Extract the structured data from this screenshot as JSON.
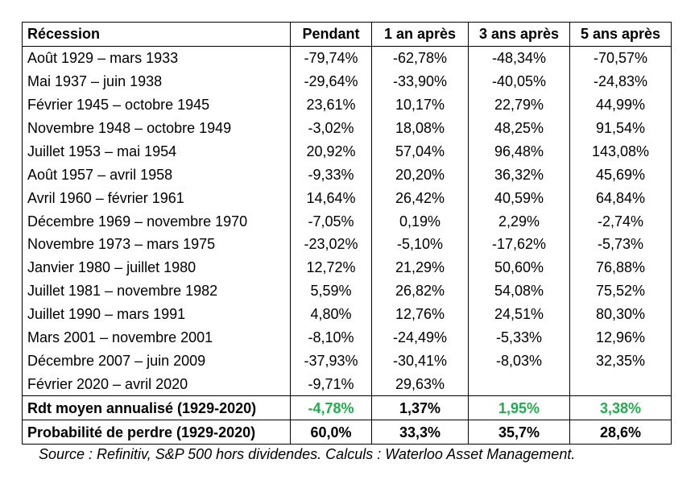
{
  "headers": [
    "Récession",
    "Pendant",
    "1 an après",
    "3 ans après",
    "5 ans après"
  ],
  "rows": [
    {
      "period": "Août 1929 – mars 1933",
      "pendant": "-79,74%",
      "y1": "-62,78%",
      "y3": "-48,34%",
      "y5": "-70,57%"
    },
    {
      "period": "Mai 1937 – juin 1938",
      "pendant": "-29,64%",
      "y1": "-33,90%",
      "y3": "-40,05%",
      "y5": "-24,83%"
    },
    {
      "period": "Février 1945 – octobre 1945",
      "pendant": "23,61%",
      "y1": "10,17%",
      "y3": "22,79%",
      "y5": "44,99%"
    },
    {
      "period": "Novembre 1948 – octobre 1949",
      "pendant": "-3,02%",
      "y1": "18,08%",
      "y3": "48,25%",
      "y5": "91,54%"
    },
    {
      "period": "Juillet 1953 – mai 1954",
      "pendant": "20,92%",
      "y1": "57,04%",
      "y3": "96,48%",
      "y5": "143,08%"
    },
    {
      "period": "Août 1957 – avril 1958",
      "pendant": "-9,33%",
      "y1": "20,20%",
      "y3": "36,32%",
      "y5": "45,69%"
    },
    {
      "period": "Avril 1960 – février 1961",
      "pendant": "14,64%",
      "y1": "26,42%",
      "y3": "40,59%",
      "y5": "64,84%"
    },
    {
      "period": "Décembre 1969 – novembre 1970",
      "pendant": "-7,05%",
      "y1": "0,19%",
      "y3": "2,29%",
      "y5": "-2,74%"
    },
    {
      "period": "Novembre 1973 – mars 1975",
      "pendant": "-23,02%",
      "y1": "-5,10%",
      "y3": "-17,62%",
      "y5": "-5,73%"
    },
    {
      "period": "Janvier 1980 – juillet 1980",
      "pendant": "12,72%",
      "y1": "21,29%",
      "y3": "50,60%",
      "y5": "76,88%"
    },
    {
      "period": "Juillet 1981 – novembre 1982",
      "pendant": "5,59%",
      "y1": "26,82%",
      "y3": "54,08%",
      "y5": "75,52%"
    },
    {
      "period": "Juillet 1990 – mars 1991",
      "pendant": "4,80%",
      "y1": "12,76%",
      "y3": "24,51%",
      "y5": "80,30%"
    },
    {
      "period": "Mars 2001 – novembre 2001",
      "pendant": "-8,10%",
      "y1": "-24,49%",
      "y3": "-5,33%",
      "y5": "12,96%"
    },
    {
      "period": "Décembre 2007 – juin 2009",
      "pendant": "-37,93%",
      "y1": "-30,41%",
      "y3": "-8,03%",
      "y5": "32,35%"
    },
    {
      "period": "Février 2020 – avril 2020",
      "pendant": "-9,71%",
      "y1": "29,63%",
      "y3": "",
      "y5": ""
    }
  ],
  "summary": [
    {
      "label": "Rdt moyen annualisé (1929-2020)",
      "pendant": "-4,78%",
      "y1": "1,37%",
      "y3": "1,95%",
      "y5": "3,38%",
      "colors": {
        "pendant": "#1fae4b",
        "y1": "#000000",
        "y3": "#1fae4b",
        "y5": "#1fae4b"
      }
    },
    {
      "label": "Probabilité de perdre (1929-2020)",
      "pendant": "60,0%",
      "y1": "33,3%",
      "y3": "35,7%",
      "y5": "28,6%",
      "colors": {
        "pendant": "#000000",
        "y1": "#000000",
        "y3": "#000000",
        "y5": "#000000"
      }
    }
  ],
  "source": "Source : Refinitiv, S&P 500 hors dividendes. Calculs : Waterloo Asset Management."
}
